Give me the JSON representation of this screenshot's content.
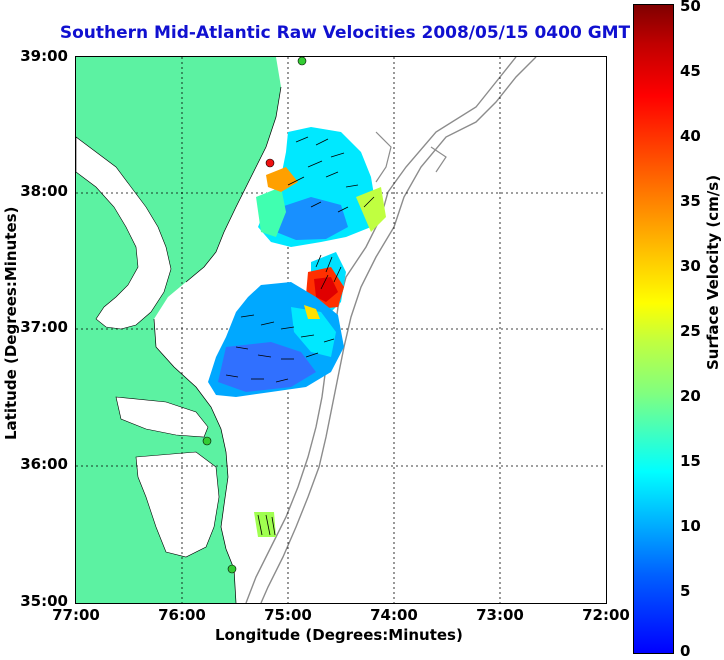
{
  "title": "Southern Mid-Atlantic Raw Velocities 2008/05/15 0400 GMT",
  "map": {
    "y_ticks": [
      "39:00",
      "38:00",
      "37:00",
      "36:00",
      "35:00"
    ],
    "x_ticks": [
      "77:00",
      "76:00",
      "75:00",
      "74:00",
      "73:00",
      "72:00"
    ],
    "xlabel": "Longitude (Degrees:Minutes)",
    "ylabel": "Latitude (Degrees:Minutes)",
    "land_color": "#5cf2a2",
    "contour_color": "#8c8c8c"
  },
  "colorbar": {
    "label": "Surface Velocity (cm/s)",
    "ticks": [
      "50",
      "45",
      "40",
      "35",
      "30",
      "25",
      "20",
      "15",
      "10",
      "5",
      "0"
    ],
    "range": [
      0,
      50
    ]
  }
}
